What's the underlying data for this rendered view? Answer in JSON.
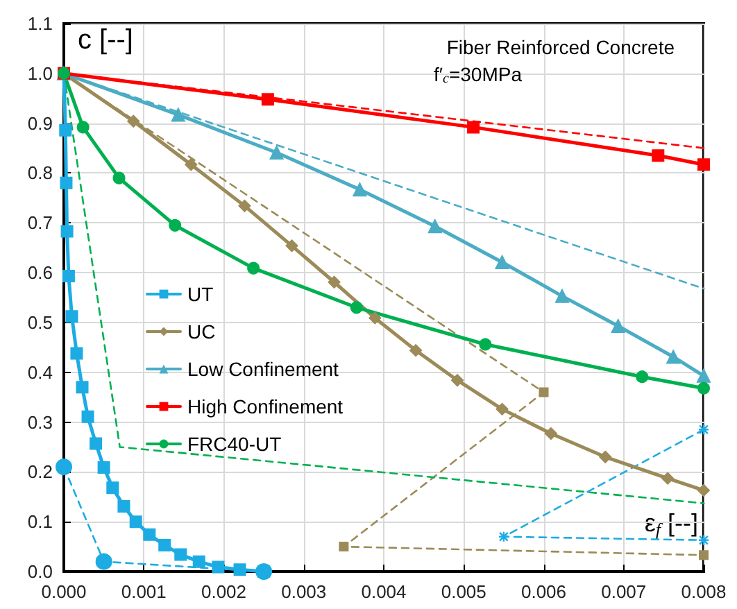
{
  "chart_data": {
    "type": "line",
    "title": "Fiber Reinforced Concrete",
    "subtitle": "f′$_{c}$=30MPa",
    "xlabel": "ε$_{f}$ [--]",
    "ylabel": "c [--]",
    "xlim": [
      0,
      0.008
    ],
    "ylim": [
      0,
      1.1
    ],
    "xticks": [
      {
        "value": 0,
        "label": "0.000"
      },
      {
        "value": 0.001,
        "label": "0.001"
      },
      {
        "value": 0.002,
        "label": "0.002"
      },
      {
        "value": 0.003,
        "label": "0.003"
      },
      {
        "value": 0.004,
        "label": "0.004"
      },
      {
        "value": 0.005,
        "label": "0.005"
      },
      {
        "value": 0.006,
        "label": "0.006"
      },
      {
        "value": 0.007,
        "label": "0.007"
      },
      {
        "value": 0.008,
        "label": "0.008"
      }
    ],
    "yticks": [
      {
        "value": 0,
        "label": "0.0"
      },
      {
        "value": 0.1,
        "label": "0.1"
      },
      {
        "value": 0.2,
        "label": "0.2"
      },
      {
        "value": 0.3,
        "label": "0.3"
      },
      {
        "value": 0.4,
        "label": "0.4"
      },
      {
        "value": 0.5,
        "label": "0.5"
      },
      {
        "value": 0.6,
        "label": "0.6"
      },
      {
        "value": 0.7,
        "label": "0.7"
      },
      {
        "value": 0.8,
        "label": "0.8"
      },
      {
        "value": 0.9,
        "label": "0.9"
      },
      {
        "value": 1.0,
        "label": "1.0"
      },
      {
        "value": 1.1,
        "label": "1.1"
      }
    ],
    "grid": true,
    "legend": "left",
    "series": [
      {
        "name": "UT",
        "color": "#1cace3",
        "marker": "square",
        "line_style": "solid",
        "x": [
          0,
          2e-05,
          3e-05,
          4e-05,
          6e-05,
          0.0001,
          0.00016,
          0.00023,
          0.0003,
          0.0004,
          0.0005,
          0.00061,
          0.00075,
          0.0009,
          0.00107,
          0.00126,
          0.00146,
          0.00169,
          0.00193,
          0.0022,
          0.0025
        ],
        "values": [
          1.0,
          0.886,
          0.78,
          0.683,
          0.593,
          0.512,
          0.438,
          0.37,
          0.311,
          0.257,
          0.209,
          0.168,
          0.131,
          0.1,
          0.074,
          0.053,
          0.034,
          0.02,
          0.009,
          0.004,
          0.0
        ]
      },
      {
        "name": "UC",
        "color": "#9c8b58",
        "marker": "diamond",
        "line_style": "solid",
        "x": [
          0,
          0.00087,
          0.00159,
          0.00226,
          0.00285,
          0.00338,
          0.00389,
          0.0044,
          0.00492,
          0.00548,
          0.00609,
          0.00677,
          0.00755,
          0.008
        ],
        "values": [
          1.0,
          0.904,
          0.817,
          0.734,
          0.654,
          0.581,
          0.509,
          0.444,
          0.384,
          0.326,
          0.277,
          0.23,
          0.187,
          0.163
        ]
      },
      {
        "name": "Low Confinement",
        "color": "#4bacc6",
        "marker": "triangle",
        "line_style": "solid",
        "x": [
          0,
          0.00143,
          0.00266,
          0.0037,
          0.00464,
          0.00548,
          0.00623,
          0.00693,
          0.00762,
          0.008
        ],
        "values": [
          1.0,
          0.917,
          0.841,
          0.767,
          0.693,
          0.621,
          0.553,
          0.493,
          0.431,
          0.393
        ]
      },
      {
        "name": "High Confinement",
        "color": "#ff0000",
        "marker": "square",
        "line_style": "solid",
        "x": [
          0,
          0.00255,
          0.00512,
          0.00743,
          0.008
        ],
        "values": [
          1.0,
          0.948,
          0.892,
          0.835,
          0.817
        ]
      },
      {
        "name": "FRC40-UT",
        "color": "#00b050",
        "marker": "circle",
        "line_style": "solid",
        "x": [
          0,
          0.00024,
          0.00069,
          0.00139,
          0.00237,
          0.00366,
          0.00527,
          0.00723,
          0.008
        ],
        "values": [
          1.0,
          0.892,
          0.79,
          0.695,
          0.609,
          0.53,
          0.456,
          0.391,
          0.368
        ]
      },
      {
        "color": "#ff0000",
        "marker": "none",
        "line_style": "dashed",
        "x": [
          0,
          0.008
        ],
        "values": [
          1.0,
          0.85
        ]
      },
      {
        "color": "#4bacc6",
        "marker": "none",
        "line_style": "dashed",
        "x": [
          0,
          0.008
        ],
        "values": [
          1.0,
          0.568
        ]
      },
      {
        "color": "#9c8b58",
        "marker": "square",
        "line_style": "dashed",
        "x": [
          0,
          0.006,
          0.0035,
          0.008
        ],
        "values": [
          1.0,
          0.36,
          0.05,
          0.033
        ]
      },
      {
        "color": "#00b050",
        "marker": "none",
        "line_style": "dashed",
        "x": [
          0,
          0.0007,
          0.008
        ],
        "values": [
          1.0,
          0.25,
          0.137
        ]
      },
      {
        "color": "#1cace3",
        "marker": "circle",
        "line_style": "dashed",
        "x": [
          0,
          0.0005,
          0.0025
        ],
        "values": [
          0.21,
          0.02,
          0.0
        ]
      },
      {
        "color": "#1cace3",
        "marker": "cross",
        "line_style": "dashed",
        "x": [
          0.008,
          0.0055,
          0.008
        ],
        "values": [
          0.285,
          0.07,
          0.063
        ]
      }
    ]
  }
}
